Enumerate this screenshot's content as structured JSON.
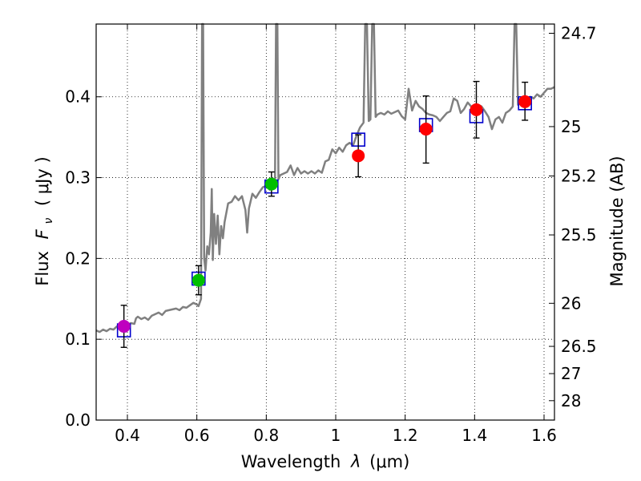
{
  "chart_data": {
    "type": "scatter",
    "xlabel_prefix": "Wavelength",
    "xlabel_symbol": "λ",
    "xlabel_unit": "(μm)",
    "ylabel_prefix": "Flux",
    "ylabel_symbol": "F",
    "ylabel_subscript": "ν",
    "ylabel_unit": "( μJy )",
    "y2label": "Magnitude (AB)",
    "xlim": [
      0.31,
      1.63
    ],
    "ylim": [
      0.0,
      0.49
    ],
    "grid": true,
    "x_ticks": [
      0.4,
      0.6,
      0.8,
      1.0,
      1.2,
      1.4,
      1.6
    ],
    "x_tick_labels": [
      "0.4",
      "0.6",
      "0.8",
      "1",
      "1.2",
      "1.4",
      "1.6"
    ],
    "y_ticks": [
      0.0,
      0.1,
      0.2,
      0.3,
      0.4
    ],
    "y_tick_labels": [
      "0.0",
      "0.1",
      "0.2",
      "0.3",
      "0.4"
    ],
    "magnitude_ticks": [
      {
        "label": "24.7",
        "flux": 0.4786
      },
      {
        "label": "25",
        "flux": 0.3631
      },
      {
        "label": "25.2",
        "flux": 0.302
      },
      {
        "label": "25.5",
        "flux": 0.2291
      },
      {
        "label": "26",
        "flux": 0.1445
      },
      {
        "label": "26.5",
        "flux": 0.0912
      },
      {
        "label": "27",
        "flux": 0.0575
      },
      {
        "label": "28",
        "flux": 0.024
      }
    ],
    "colors": {
      "spectrum": "#808080",
      "model_box": "#0000cc",
      "error_bar": "#000000",
      "axis": "#000000",
      "grid": "#000000"
    },
    "spectrum": {
      "name": "model spectrum",
      "points": [
        [
          0.31,
          0.111
        ],
        [
          0.32,
          0.109
        ],
        [
          0.33,
          0.112
        ],
        [
          0.34,
          0.11
        ],
        [
          0.35,
          0.113
        ],
        [
          0.36,
          0.112
        ],
        [
          0.37,
          0.116
        ],
        [
          0.38,
          0.113
        ],
        [
          0.39,
          0.117
        ],
        [
          0.4,
          0.118
        ],
        [
          0.41,
          0.12
        ],
        [
          0.42,
          0.119
        ],
        [
          0.425,
          0.126
        ],
        [
          0.43,
          0.128
        ],
        [
          0.44,
          0.125
        ],
        [
          0.45,
          0.127
        ],
        [
          0.46,
          0.124
        ],
        [
          0.47,
          0.129
        ],
        [
          0.48,
          0.131
        ],
        [
          0.49,
          0.133
        ],
        [
          0.5,
          0.13
        ],
        [
          0.51,
          0.135
        ],
        [
          0.52,
          0.136
        ],
        [
          0.53,
          0.137
        ],
        [
          0.54,
          0.138
        ],
        [
          0.55,
          0.136
        ],
        [
          0.56,
          0.14
        ],
        [
          0.57,
          0.139
        ],
        [
          0.58,
          0.142
        ],
        [
          0.59,
          0.145
        ],
        [
          0.6,
          0.143
        ],
        [
          0.605,
          0.141
        ],
        [
          0.612,
          0.15
        ],
        [
          0.615,
          0.49
        ],
        [
          0.618,
          0.49
        ],
        [
          0.621,
          0.2
        ],
        [
          0.625,
          0.185
        ],
        [
          0.63,
          0.215
        ],
        [
          0.635,
          0.205
        ],
        [
          0.64,
          0.232
        ],
        [
          0.643,
          0.286
        ],
        [
          0.646,
          0.198
        ],
        [
          0.65,
          0.255
        ],
        [
          0.655,
          0.218
        ],
        [
          0.66,
          0.253
        ],
        [
          0.665,
          0.205
        ],
        [
          0.67,
          0.24
        ],
        [
          0.675,
          0.225
        ],
        [
          0.68,
          0.245
        ],
        [
          0.69,
          0.268
        ],
        [
          0.7,
          0.27
        ],
        [
          0.71,
          0.277
        ],
        [
          0.72,
          0.272
        ],
        [
          0.73,
          0.277
        ],
        [
          0.74,
          0.26
        ],
        [
          0.745,
          0.232
        ],
        [
          0.75,
          0.262
        ],
        [
          0.76,
          0.28
        ],
        [
          0.77,
          0.275
        ],
        [
          0.78,
          0.282
        ],
        [
          0.79,
          0.288
        ],
        [
          0.8,
          0.29
        ],
        [
          0.81,
          0.285
        ],
        [
          0.82,
          0.292
        ],
        [
          0.825,
          0.295
        ],
        [
          0.828,
          0.49
        ],
        [
          0.832,
          0.49
        ],
        [
          0.835,
          0.298
        ],
        [
          0.84,
          0.303
        ],
        [
          0.85,
          0.305
        ],
        [
          0.86,
          0.307
        ],
        [
          0.87,
          0.315
        ],
        [
          0.88,
          0.303
        ],
        [
          0.89,
          0.312
        ],
        [
          0.9,
          0.305
        ],
        [
          0.91,
          0.308
        ],
        [
          0.92,
          0.305
        ],
        [
          0.93,
          0.308
        ],
        [
          0.94,
          0.305
        ],
        [
          0.95,
          0.309
        ],
        [
          0.96,
          0.306
        ],
        [
          0.97,
          0.32
        ],
        [
          0.98,
          0.322
        ],
        [
          0.99,
          0.335
        ],
        [
          1.0,
          0.33
        ],
        [
          1.01,
          0.337
        ],
        [
          1.02,
          0.332
        ],
        [
          1.03,
          0.34
        ],
        [
          1.04,
          0.343
        ],
        [
          1.05,
          0.34
        ],
        [
          1.06,
          0.352
        ],
        [
          1.07,
          0.362
        ],
        [
          1.08,
          0.368
        ],
        [
          1.085,
          0.49
        ],
        [
          1.09,
          0.49
        ],
        [
          1.095,
          0.37
        ],
        [
          1.1,
          0.372
        ],
        [
          1.105,
          0.49
        ],
        [
          1.11,
          0.49
        ],
        [
          1.115,
          0.375
        ],
        [
          1.12,
          0.378
        ],
        [
          1.13,
          0.38
        ],
        [
          1.14,
          0.378
        ],
        [
          1.15,
          0.382
        ],
        [
          1.16,
          0.379
        ],
        [
          1.17,
          0.381
        ],
        [
          1.18,
          0.383
        ],
        [
          1.19,
          0.376
        ],
        [
          1.2,
          0.372
        ],
        [
          1.21,
          0.41
        ],
        [
          1.22,
          0.383
        ],
        [
          1.23,
          0.395
        ],
        [
          1.24,
          0.388
        ],
        [
          1.25,
          0.385
        ],
        [
          1.26,
          0.38
        ],
        [
          1.27,
          0.378
        ],
        [
          1.28,
          0.377
        ],
        [
          1.29,
          0.375
        ],
        [
          1.3,
          0.37
        ],
        [
          1.31,
          0.375
        ],
        [
          1.32,
          0.38
        ],
        [
          1.33,
          0.382
        ],
        [
          1.34,
          0.398
        ],
        [
          1.35,
          0.395
        ],
        [
          1.36,
          0.38
        ],
        [
          1.37,
          0.385
        ],
        [
          1.38,
          0.393
        ],
        [
          1.39,
          0.388
        ],
        [
          1.4,
          0.385
        ],
        [
          1.41,
          0.39
        ],
        [
          1.42,
          0.388
        ],
        [
          1.43,
          0.382
        ],
        [
          1.44,
          0.375
        ],
        [
          1.45,
          0.36
        ],
        [
          1.46,
          0.372
        ],
        [
          1.47,
          0.375
        ],
        [
          1.48,
          0.368
        ],
        [
          1.49,
          0.38
        ],
        [
          1.5,
          0.383
        ],
        [
          1.51,
          0.388
        ],
        [
          1.515,
          0.49
        ],
        [
          1.52,
          0.49
        ],
        [
          1.525,
          0.39
        ],
        [
          1.53,
          0.393
        ],
        [
          1.54,
          0.395
        ],
        [
          1.55,
          0.398
        ],
        [
          1.56,
          0.4
        ],
        [
          1.57,
          0.398
        ],
        [
          1.58,
          0.403
        ],
        [
          1.59,
          0.4
        ],
        [
          1.6,
          0.405
        ],
        [
          1.61,
          0.41
        ],
        [
          1.62,
          0.41
        ],
        [
          1.63,
          0.412
        ]
      ]
    },
    "observations": [
      {
        "x": 0.39,
        "y": 0.116,
        "yerr_low": 0.026,
        "yerr_high": 0.026,
        "color": "#bf00bf",
        "model_y": 0.111
      },
      {
        "x": 0.605,
        "y": 0.173,
        "yerr_low": 0.018,
        "yerr_high": 0.018,
        "color": "#00bf00",
        "model_y": 0.175
      },
      {
        "x": 0.815,
        "y": 0.292,
        "yerr_low": 0.015,
        "yerr_high": 0.015,
        "color": "#00bf00",
        "model_y": 0.289
      },
      {
        "x": 1.065,
        "y": 0.327,
        "yerr_low": 0.026,
        "yerr_high": 0.026,
        "color": "#ff0000",
        "model_y": 0.347
      },
      {
        "x": 1.26,
        "y": 0.36,
        "yerr_low": 0.042,
        "yerr_high": 0.041,
        "color": "#ff0000",
        "model_y": 0.365
      },
      {
        "x": 1.405,
        "y": 0.384,
        "yerr_low": 0.035,
        "yerr_high": 0.035,
        "color": "#ff0000",
        "model_y": 0.376
      },
      {
        "x": 1.545,
        "y": 0.394,
        "yerr_low": 0.023,
        "yerr_high": 0.024,
        "color": "#ff0000",
        "model_y": 0.392
      }
    ]
  }
}
